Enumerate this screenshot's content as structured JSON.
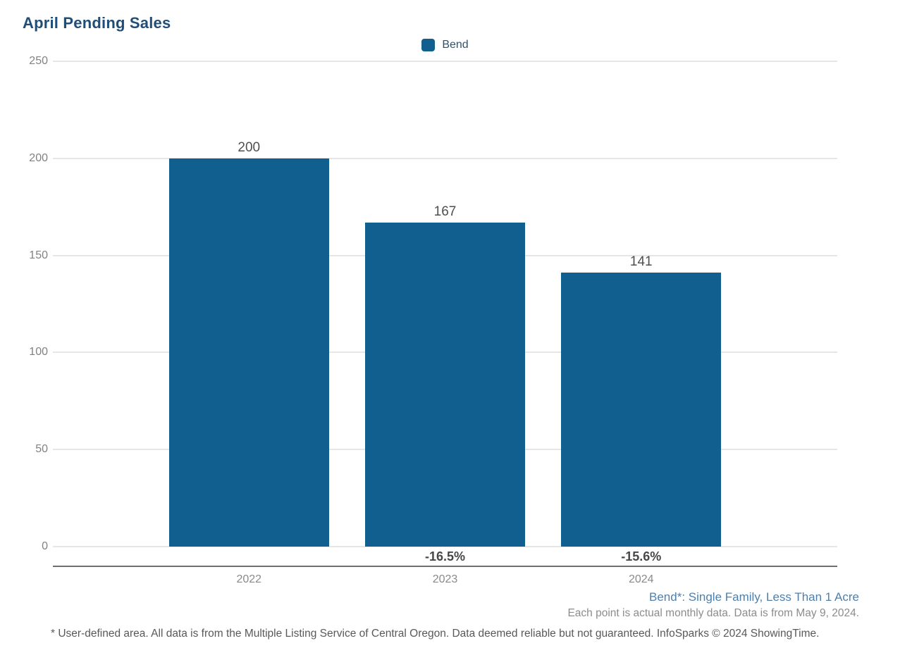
{
  "chart": {
    "title": "April Pending Sales",
    "legend": [
      {
        "label": "Bend",
        "color": "#115F8F"
      }
    ]
  },
  "chart_data": {
    "type": "bar",
    "title": "April Pending Sales",
    "categories": [
      "2022",
      "2023",
      "2024"
    ],
    "series": [
      {
        "name": "Bend",
        "color": "#115F8F",
        "values": [
          200,
          167,
          141
        ]
      }
    ],
    "bar_value_labels": [
      "200",
      "167",
      "141"
    ],
    "pct_change_labels": [
      "",
      "-16.5%",
      "-15.6%"
    ],
    "xlabel": "",
    "ylabel": "",
    "ylim": [
      0,
      250
    ],
    "yticks": [
      0,
      50,
      100,
      150,
      200,
      250
    ],
    "grid": "horizontal",
    "legend_position": "top-center"
  },
  "footnotes": {
    "area_definition": "Bend*: Single Family, Less Than 1 Acre",
    "data_note": "Each point is actual monthly data. Data is from May 9, 2024.",
    "disclaimer": "* User-defined area. All data is from the Multiple Listing Service of Central Oregon. Data deemed reliable but not guaranteed. InfoSparks © 2024 ShowingTime."
  }
}
